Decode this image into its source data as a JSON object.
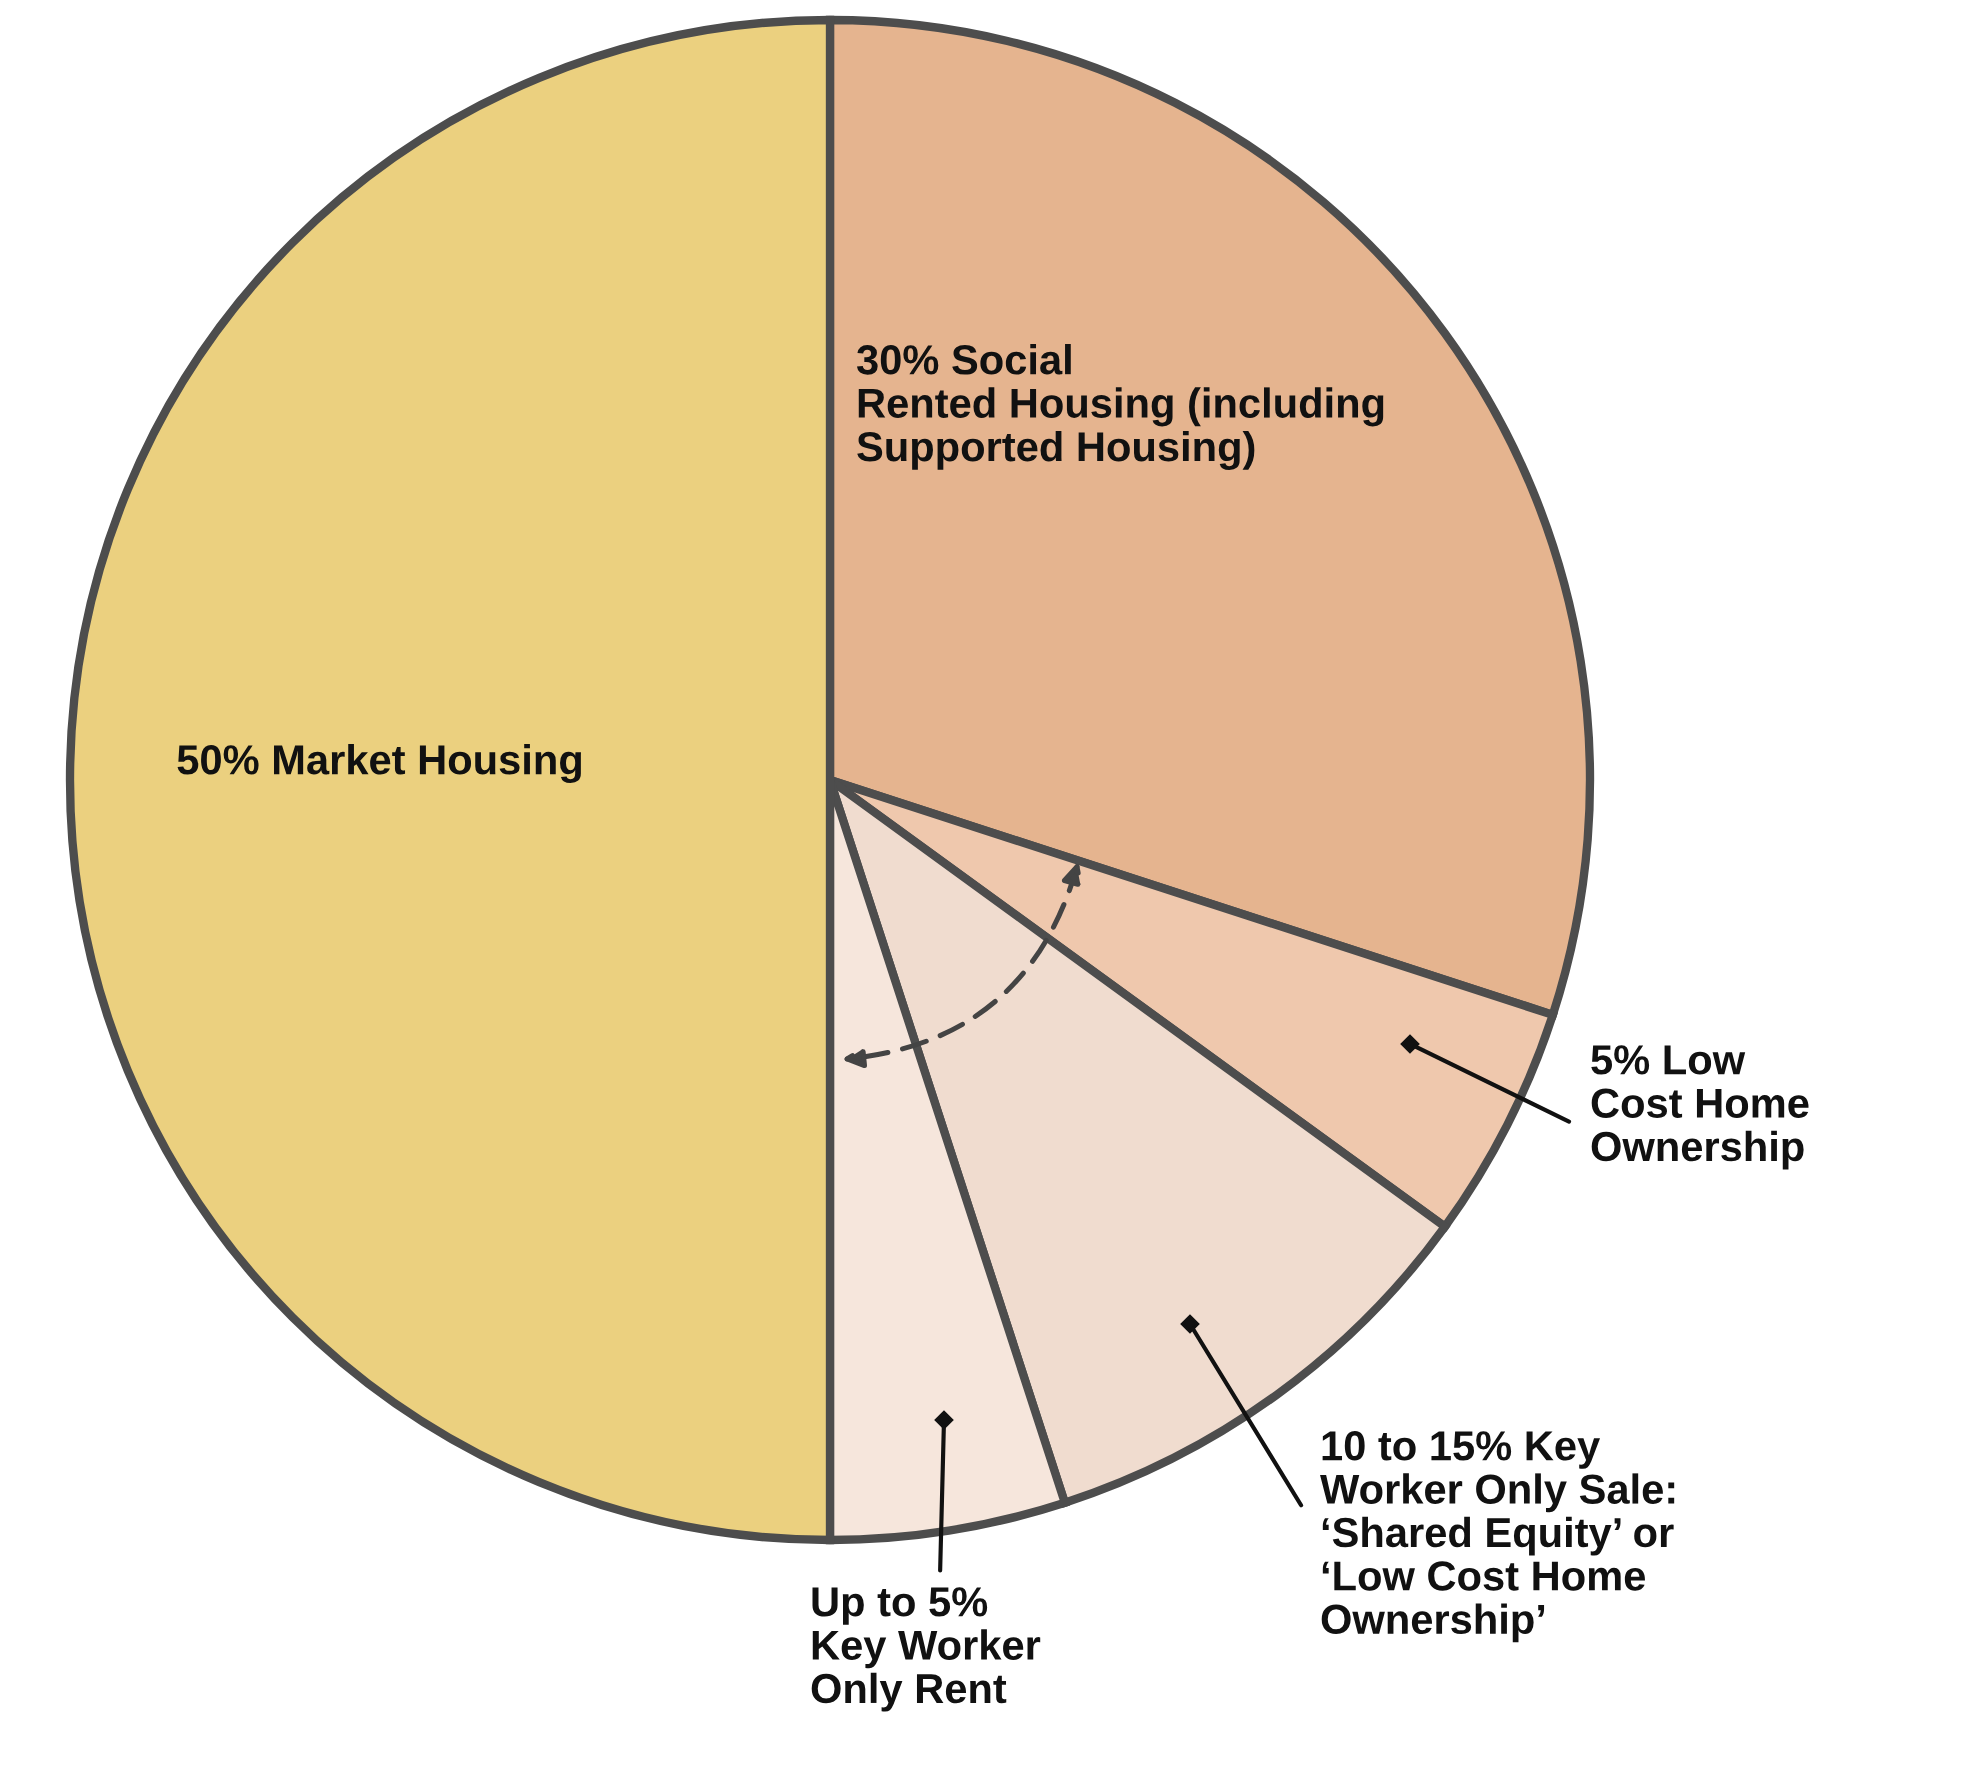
{
  "chart_data": {
    "type": "pie",
    "categories": [
      "30% Social\nRented Housing (including\nSupported Housing)",
      "5% Low\nCost Home\nOwnership",
      "10 to 15% Key\nWorker Only Sale:\n‘Shared Equity’ or\n‘Low Cost Home\nOwnership’",
      "Up to 5%\nKey Worker\nOnly Rent",
      "50% Market Housing"
    ],
    "values": [
      30,
      5,
      10,
      5,
      50
    ],
    "colors": [
      "#e5b48f",
      "#efc8ad",
      "#f0dccf",
      "#f6e6dc",
      "#ebd07f"
    ]
  }
}
